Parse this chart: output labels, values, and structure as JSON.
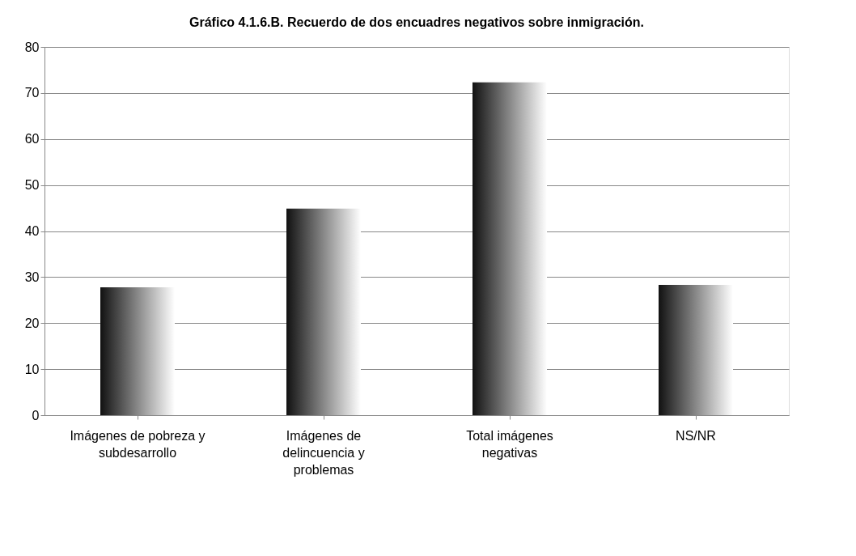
{
  "chart_data": {
    "type": "bar",
    "title": "Gráfico 4.1.6.B. Recuerdo de dos encuadres negativos sobre inmigración.",
    "categories": [
      "Imágenes de pobreza y subdesarrollo",
      "Imágenes de delincuencia y problemas",
      "Total imágenes negativas",
      "NS/NR"
    ],
    "values": [
      27.8,
      44.9,
      72.3,
      28.3
    ],
    "color": "#111111",
    "ylim": [
      0,
      80
    ],
    "yticks": [
      0,
      10,
      20,
      30,
      40,
      50,
      60,
      70,
      80
    ],
    "grid": "y"
  }
}
